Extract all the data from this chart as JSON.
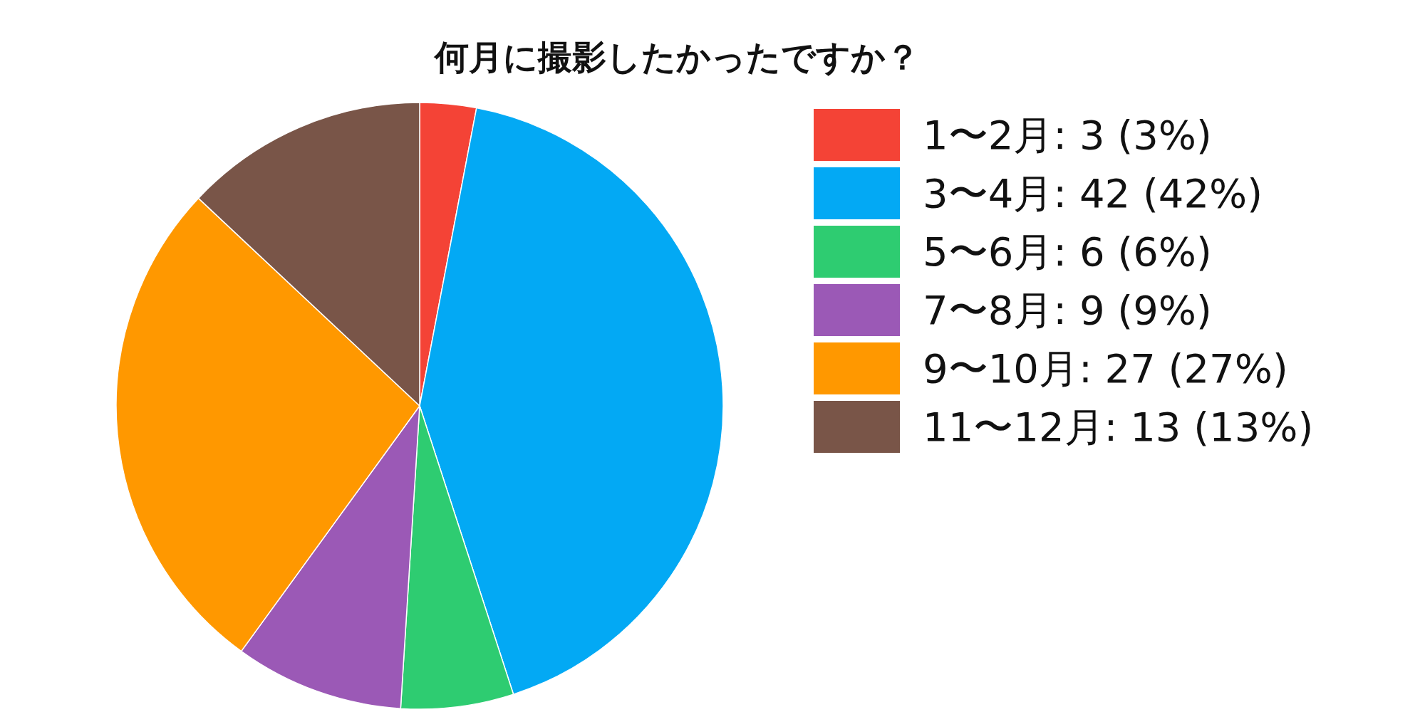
{
  "chart_data": {
    "type": "pie",
    "title": "何月に撮影したかったですか？",
    "categories": [
      "1〜2月: 3 (3%)",
      "3〜4月: 42 (42%)",
      "5〜6月: 6 (6%)",
      "7〜8月: 9 (9%)",
      "9〜10月: 27 (27%)",
      "11〜12月: 13 (13%)"
    ],
    "values": [
      3,
      42,
      6,
      9,
      27,
      13
    ],
    "colors": [
      "#f44336",
      "#03a9f4",
      "#2ecc71",
      "#9b59b6",
      "#ff9800",
      "#795548"
    ],
    "legend": "right"
  }
}
